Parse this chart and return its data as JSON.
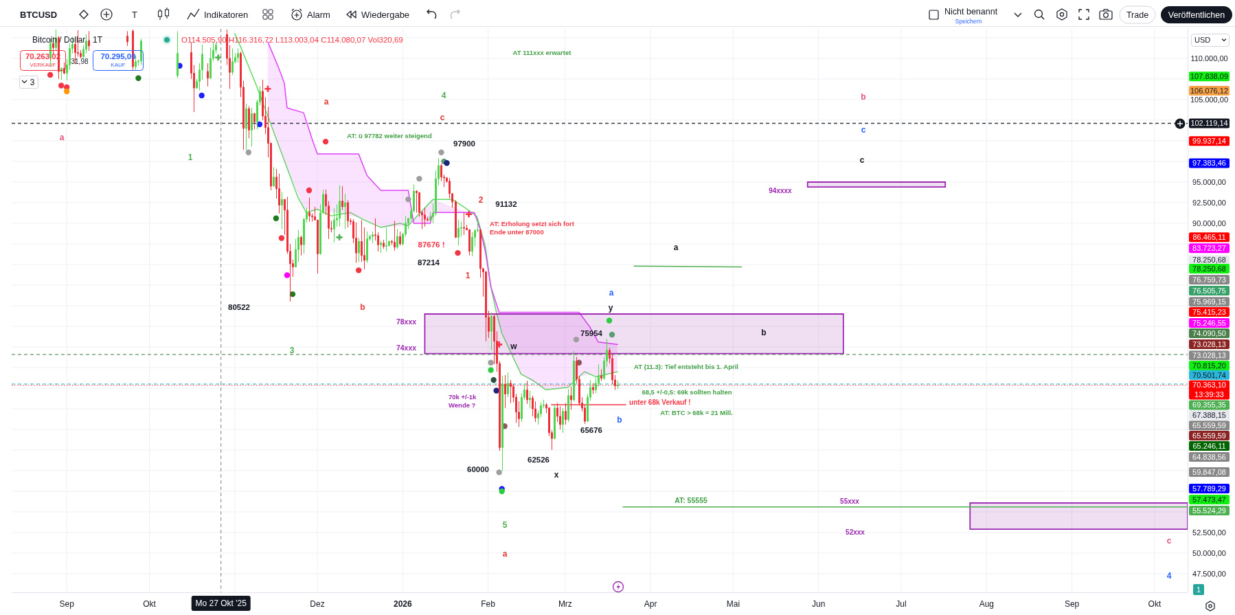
{
  "chart_data": {
    "type": "candlestick",
    "title": "Bitcoin / Dollar · 1T",
    "xlim": [
      "2025-08-12",
      "2026-10-13"
    ],
    "xticks": [
      {
        "value": "2025-09-01",
        "label": "Sep"
      },
      {
        "value": "2025-10-01",
        "label": "Okt"
      },
      {
        "value": "2025-11-01",
        "label": null
      },
      {
        "value": "2025-12-01",
        "label": "Dez"
      },
      {
        "value": "2026-01-01",
        "label": "2026"
      },
      {
        "value": "2026-02-01",
        "label": "Feb"
      },
      {
        "value": "2026-03-01",
        "label": "Mrz"
      },
      {
        "value": "2026-04-01",
        "label": "Apr"
      },
      {
        "value": "2026-05-01",
        "label": "Mai"
      },
      {
        "value": "2026-06-01",
        "label": "Jun"
      },
      {
        "value": "2026-07-01",
        "label": "Jul"
      },
      {
        "value": "2026-08-01",
        "label": "Aug"
      },
      {
        "value": "2026-09-01",
        "label": "Sep"
      },
      {
        "value": "2026-10-01",
        "label": "Okt"
      }
    ],
    "ylim": [
      45250,
      113575
    ],
    "yticks": [
      {
        "value": 47500,
        "label": "47.500,00"
      },
      {
        "value": 50000,
        "label": "50.000,00"
      },
      {
        "value": 52500,
        "label": "52.500,00"
      },
      {
        "value": 55000,
        "label": null
      },
      {
        "value": 57500,
        "label": null
      },
      {
        "value": 60000,
        "label": null
      },
      {
        "value": 62500,
        "label": null
      },
      {
        "value": 65000,
        "label": null
      },
      {
        "value": 67500,
        "label": null
      },
      {
        "value": 70000,
        "label": null
      },
      {
        "value": 72500,
        "label": null
      },
      {
        "value": 75000,
        "label": null
      },
      {
        "value": 77500,
        "label": null
      },
      {
        "value": 80000,
        "label": null
      },
      {
        "value": 82500,
        "label": null
      },
      {
        "value": 85000,
        "label": null
      },
      {
        "value": 87500,
        "label": null
      },
      {
        "value": 90000,
        "label": "90.000,00"
      },
      {
        "value": 92500,
        "label": "92.500,00"
      },
      {
        "value": 95000,
        "label": "95.000,00"
      },
      {
        "value": 97500,
        "label": null
      },
      {
        "value": 100000,
        "label": null
      },
      {
        "value": 102500,
        "label": null
      },
      {
        "value": 105000,
        "label": "105.000,00"
      },
      {
        "value": 107500,
        "label": null
      },
      {
        "value": 110000,
        "label": "110.000,00"
      },
      {
        "value": 112500,
        "label": null
      }
    ],
    "grid": true,
    "series": [
      {
        "x": [
          "2025-08-26",
          "2025-08-27",
          "2025-08-28",
          "2025-08-29",
          "2025-08-30",
          "2025-08-31",
          "2025-09-01",
          "2025-09-02",
          "2025-09-03",
          "2025-09-04",
          "2025-09-05",
          "2025-09-06",
          "2025-09-07",
          "2025-09-08",
          "2025-09-09",
          "2025-09-23",
          "2025-09-25",
          "2025-09-26",
          "2025-09-27",
          "2025-09-28",
          "2025-10-11",
          "2025-10-16",
          "2025-10-17",
          "2025-10-18",
          "2025-10-19",
          "2025-10-20",
          "2025-10-22",
          "2025-10-23",
          "2025-10-24",
          "2025-10-25",
          "2025-10-29",
          "2025-10-30",
          "2025-10-31",
          "2025-11-01",
          "2025-11-02",
          "2025-11-03",
          "2025-11-04",
          "2025-11-05",
          "2025-11-06",
          "2025-11-07",
          "2025-11-08",
          "2025-11-09",
          "2025-11-10",
          "2025-11-11",
          "2025-11-12",
          "2025-11-13",
          "2025-11-14",
          "2025-11-15",
          "2025-11-16",
          "2025-11-17",
          "2025-11-18",
          "2025-11-19",
          "2025-11-20",
          "2025-11-21",
          "2025-11-22",
          "2025-11-23",
          "2025-11-24",
          "2025-11-25",
          "2025-11-26",
          "2025-11-27",
          "2025-11-28",
          "2025-11-29",
          "2025-11-30",
          "2025-12-01",
          "2025-12-02",
          "2025-12-03",
          "2025-12-04",
          "2025-12-05",
          "2025-12-06",
          "2025-12-07",
          "2025-12-08",
          "2025-12-09",
          "2025-12-10",
          "2025-12-11",
          "2025-12-12",
          "2025-12-13",
          "2025-12-14",
          "2025-12-15",
          "2025-12-16",
          "2025-12-17",
          "2025-12-18",
          "2025-12-19",
          "2025-12-20",
          "2025-12-21",
          "2025-12-22",
          "2025-12-23",
          "2025-12-24",
          "2025-12-25",
          "2025-12-26",
          "2025-12-27",
          "2025-12-28",
          "2025-12-29",
          "2025-12-30",
          "2025-12-31",
          "2026-01-01",
          "2026-01-02",
          "2026-01-03",
          "2026-01-04",
          "2026-01-05",
          "2026-01-06",
          "2026-01-07",
          "2026-01-08",
          "2026-01-09",
          "2026-01-10",
          "2026-01-11",
          "2026-01-12",
          "2026-01-13",
          "2026-01-14",
          "2026-01-15",
          "2026-01-16",
          "2026-01-17",
          "2026-01-18",
          "2026-01-19",
          "2026-01-20",
          "2026-01-21",
          "2026-01-22",
          "2026-01-23",
          "2026-01-24",
          "2026-01-25",
          "2026-01-26",
          "2026-01-27",
          "2026-01-28",
          "2026-01-29",
          "2026-01-30",
          "2026-01-31",
          "2026-02-01",
          "2026-02-02",
          "2026-02-03",
          "2026-02-04",
          "2026-02-05",
          "2026-02-06",
          "2026-02-07",
          "2026-02-08",
          "2026-02-09",
          "2026-02-10",
          "2026-02-11",
          "2026-02-12",
          "2026-02-13",
          "2026-02-14",
          "2026-02-15",
          "2026-02-16",
          "2026-02-17",
          "2026-02-18",
          "2026-02-19",
          "2026-02-20",
          "2026-02-21",
          "2026-02-22",
          "2026-02-23",
          "2026-02-24",
          "2026-02-25",
          "2026-02-26",
          "2026-02-27",
          "2026-02-28",
          "2026-03-01",
          "2026-03-02",
          "2026-03-03",
          "2026-03-04",
          "2026-03-05",
          "2026-03-06",
          "2026-03-07",
          "2026-03-08",
          "2026-03-09",
          "2026-03-10",
          "2026-03-11",
          "2026-03-12",
          "2026-03-13",
          "2026-03-14",
          "2026-03-15",
          "2026-03-16",
          "2026-03-17",
          "2026-03-18",
          "2026-03-19",
          "2026-03-20"
        ],
        "ohlc": [
          [
            110100,
            112400,
            109000,
            111800
          ],
          [
            111800,
            112600,
            110400,
            111300
          ],
          [
            111300,
            113500,
            110900,
            112500
          ],
          [
            112500,
            112700,
            107500,
            108400
          ],
          [
            108400,
            108900,
            107400,
            108800
          ],
          [
            108800,
            109500,
            108100,
            108200
          ],
          [
            108200,
            109900,
            107300,
            109200
          ],
          [
            109200,
            111800,
            108600,
            111200
          ],
          [
            111200,
            112600,
            110600,
            111700
          ],
          [
            111700,
            112200,
            109300,
            110700
          ],
          [
            110700,
            113400,
            110200,
            110600
          ],
          [
            110600,
            111000,
            110000,
            110200
          ],
          [
            110200,
            111600,
            110000,
            111100
          ],
          [
            111100,
            112900,
            110600,
            112100
          ],
          [
            112100,
            113300,
            110900,
            111500
          ],
          [
            112700,
            113300,
            111500,
            112000
          ],
          [
            113300,
            113500,
            108600,
            109000
          ],
          [
            109000,
            110300,
            108600,
            109600
          ],
          [
            109600,
            109800,
            109100,
            109700
          ],
          [
            109700,
            112400,
            109200,
            112100
          ],
          [
            107900,
            113300,
            107600,
            110600
          ],
          [
            110700,
            111900,
            107500,
            108200
          ],
          [
            108200,
            109200,
            103500,
            106400
          ],
          [
            106400,
            107500,
            106300,
            107200
          ],
          [
            107200,
            109400,
            106100,
            108600
          ],
          [
            108600,
            111700,
            107400,
            110500
          ],
          [
            108400,
            109400,
            106600,
            107600
          ],
          [
            107600,
            111300,
            107500,
            110000
          ],
          [
            110000,
            112000,
            109700,
            111000
          ],
          [
            111000,
            111900,
            110600,
            111600
          ],
          [
            112900,
            113500,
            109200,
            110000
          ],
          [
            110000,
            111600,
            106300,
            108300
          ],
          [
            108300,
            111200,
            108000,
            109600
          ],
          [
            109600,
            110600,
            109400,
            110100
          ],
          [
            110100,
            111200,
            109500,
            110600
          ],
          [
            110600,
            110800,
            105300,
            106500
          ],
          [
            106500,
            107300,
            98900,
            101500
          ],
          [
            101500,
            104500,
            98900,
            103900
          ],
          [
            103900,
            104200,
            100300,
            101300
          ],
          [
            101300,
            104000,
            99300,
            103300
          ],
          [
            103300,
            103400,
            101400,
            102300
          ],
          [
            102300,
            105000,
            101400,
            104700
          ],
          [
            104700,
            106600,
            104300,
            106000
          ],
          [
            106000,
            107400,
            102500,
            103000
          ],
          [
            103000,
            105300,
            100800,
            101600
          ],
          [
            101600,
            104100,
            98000,
            99700
          ],
          [
            99700,
            99800,
            94000,
            94500
          ],
          [
            94500,
            96800,
            94500,
            95600
          ],
          [
            95600,
            96600,
            93000,
            94200
          ],
          [
            94200,
            96000,
            91200,
            92200
          ],
          [
            92200,
            93800,
            89300,
            92900
          ],
          [
            92900,
            92900,
            88600,
            91600
          ],
          [
            91600,
            93200,
            86300,
            86600
          ],
          [
            86600,
            87500,
            80522,
            85100
          ],
          [
            85100,
            85600,
            83500,
            84700
          ],
          [
            84700,
            88100,
            84700,
            86800
          ],
          [
            86800,
            89200,
            85300,
            88300
          ],
          [
            88300,
            88500,
            86100,
            87400
          ],
          [
            87400,
            90600,
            86300,
            90500
          ],
          [
            90500,
            91900,
            90100,
            91300
          ],
          [
            91300,
            93100,
            90200,
            90900
          ],
          [
            90900,
            91200,
            90200,
            90800
          ],
          [
            90800,
            92000,
            90400,
            90400
          ],
          [
            90400,
            90400,
            83900,
            86300
          ],
          [
            86300,
            92300,
            86200,
            91300
          ],
          [
            91300,
            94100,
            91100,
            93500
          ],
          [
            93500,
            94100,
            91000,
            92100
          ],
          [
            92100,
            92700,
            88100,
            89400
          ],
          [
            89400,
            90300,
            88900,
            89300
          ],
          [
            89300,
            91800,
            87700,
            90400
          ],
          [
            90400,
            92300,
            89600,
            90600
          ],
          [
            90600,
            94600,
            89600,
            92700
          ],
          [
            92700,
            94500,
            91600,
            92000
          ],
          [
            92000,
            93600,
            89300,
            92500
          ],
          [
            92500,
            92800,
            89500,
            90300
          ],
          [
            90300,
            90600,
            89800,
            90200
          ],
          [
            90200,
            90500,
            87600,
            88200
          ],
          [
            88200,
            90100,
            85200,
            86400
          ],
          [
            86400,
            88200,
            85300,
            87800
          ],
          [
            87800,
            90400,
            85300,
            86100
          ],
          [
            86100,
            89500,
            84400,
            85500
          ],
          [
            85500,
            89000,
            85200,
            88100
          ],
          [
            88100,
            88600,
            87900,
            88400
          ],
          [
            88400,
            89000,
            87600,
            88600
          ],
          [
            88600,
            90600,
            87900,
            88500
          ],
          [
            88500,
            88900,
            86600,
            87400
          ],
          [
            87400,
            87900,
            86400,
            87600
          ],
          [
            87600,
            88000,
            86900,
            87200
          ],
          [
            87200,
            89500,
            86600,
            87300
          ],
          [
            87300,
            87900,
            87200,
            87800
          ],
          [
            87800,
            88000,
            87400,
            87700
          ],
          [
            87700,
            90300,
            86700,
            87100
          ],
          [
            87100,
            89300,
            86900,
            88400
          ],
          [
            88400,
            89000,
            87300,
            87500
          ],
          [
            87500,
            88800,
            87300,
            88700
          ],
          [
            88700,
            90900,
            88400,
            90000
          ],
          [
            90000,
            90600,
            89300,
            90600
          ],
          [
            90600,
            91700,
            90300,
            91500
          ],
          [
            91500,
            94700,
            91300,
            93900
          ],
          [
            93900,
            94000,
            91300,
            93700
          ],
          [
            93700,
            93800,
            90800,
            91300
          ],
          [
            91300,
            91500,
            89300,
            91000
          ],
          [
            91000,
            91900,
            89600,
            90500
          ],
          [
            90500,
            90800,
            90200,
            90400
          ],
          [
            90400,
            91400,
            90200,
            90800
          ],
          [
            90800,
            92400,
            90000,
            91200
          ],
          [
            91200,
            96400,
            90900,
            95400
          ],
          [
            95400,
            97900,
            94600,
            97000
          ],
          [
            97000,
            97200,
            95100,
            95600
          ],
          [
            95600,
            95900,
            94400,
            95500
          ],
          [
            95500,
            95600,
            94900,
            95100
          ],
          [
            95100,
            95500,
            93000,
            93600
          ],
          [
            93600,
            93600,
            91900,
            92600
          ],
          [
            92600,
            92800,
            88200,
            88300
          ],
          [
            88300,
            90400,
            87300,
            89400
          ],
          [
            89400,
            90200,
            88400,
            89500
          ],
          [
            89500,
            91300,
            88600,
            89400
          ],
          [
            89400,
            89800,
            89200,
            89200
          ],
          [
            89200,
            89300,
            86100,
            86600
          ],
          [
            86600,
            88900,
            86000,
            88300
          ],
          [
            88300,
            89300,
            87200,
            89100
          ],
          [
            89100,
            90500,
            88900,
            89200
          ],
          [
            89200,
            89300,
            83400,
            84500
          ],
          [
            84500,
            84600,
            81100,
            84100
          ],
          [
            84100,
            84200,
            75700,
            78600
          ],
          [
            78600,
            79400,
            76100,
            76900
          ],
          [
            76900,
            79200,
            74600,
            78700
          ],
          [
            78700,
            79000,
            72900,
            75700
          ],
          [
            75700,
            76900,
            72000,
            73000
          ],
          [
            73000,
            73300,
            62400,
            62800
          ],
          [
            62800,
            71500,
            60000,
            70500
          ],
          [
            70500,
            71600,
            67600,
            69300
          ],
          [
            69300,
            71900,
            68900,
            70600
          ],
          [
            70600,
            71000,
            68200,
            70200
          ],
          [
            70200,
            70500,
            68300,
            68900
          ],
          [
            68900,
            69300,
            65800,
            67100
          ],
          [
            67100,
            68400,
            65300,
            66300
          ],
          [
            66300,
            69400,
            65900,
            68900
          ],
          [
            68900,
            70600,
            68600,
            69800
          ],
          [
            69800,
            70900,
            68100,
            68600
          ],
          [
            68600,
            69700,
            67600,
            68800
          ],
          [
            68800,
            69100,
            66600,
            67500
          ],
          [
            67500,
            68400,
            65900,
            66400
          ],
          [
            66400,
            67300,
            65600,
            66900
          ],
          [
            66900,
            68300,
            66500,
            67900
          ],
          [
            67900,
            68600,
            67600,
            68000
          ],
          [
            68000,
            68200,
            67000,
            67600
          ],
          [
            67600,
            67700,
            64200,
            64600
          ],
          [
            64600,
            64900,
            62526,
            63900
          ],
          [
            63900,
            68000,
            63800,
            67600
          ],
          [
            67600,
            68200,
            65900,
            66600
          ],
          [
            66600,
            67800,
            65000,
            65600
          ],
          [
            65600,
            67600,
            64600,
            67200
          ],
          [
            67200,
            68200,
            65600,
            66200
          ],
          [
            66200,
            69900,
            65900,
            69100
          ],
          [
            69100,
            70200,
            67400,
            68600
          ],
          [
            68600,
            74500,
            68400,
            73300
          ],
          [
            73300,
            73800,
            70600,
            71100
          ],
          [
            71100,
            71500,
            67900,
            68200
          ],
          [
            68200,
            68900,
            67200,
            67600
          ],
          [
            67600,
            68000,
            65676,
            66000
          ],
          [
            66000,
            69300,
            65900,
            68900
          ],
          [
            68900,
            71000,
            68500,
            70100
          ],
          [
            70100,
            70600,
            69300,
            69800
          ],
          [
            69800,
            71300,
            69400,
            70600
          ],
          [
            70600,
            72900,
            70200,
            71500
          ],
          [
            71500,
            72300,
            70900,
            71200
          ],
          [
            71200,
            73800,
            71000,
            73300
          ],
          [
            73300,
            75954,
            72600,
            74600
          ],
          [
            74600,
            74900,
            73000,
            73600
          ],
          [
            73600,
            74200,
            70500,
            71000
          ],
          [
            71000,
            71600,
            69800,
            70300
          ],
          [
            70300,
            70900,
            69900,
            70363.1
          ]
        ],
        "colors": [
          "#4fd64f",
          "#ec2f38",
          "#4fd64f",
          "#ec2f38",
          "#4fd64f",
          "#ec2f38",
          "#4fd64f",
          "#4fd64f",
          "#4fd64f",
          "#ec2f38",
          "#ec2f38",
          "#ec2f38",
          "#4fd64f",
          "#4fd64f",
          "#ec2f38",
          "#ec2f38",
          "#ec2f38",
          "#4fd64f",
          "#4fd64f",
          "#4fd64f",
          "#4fd64f",
          "#ec2f38",
          "#ec2f38",
          "#4fd64f",
          "#4fd64f",
          "#4fd64f",
          "#ec2f38",
          "#4fd64f",
          "#4fd64f",
          "#4fd64f",
          "#ec2f38",
          "#ec2f38",
          "#4fd64f",
          "#4fd64f",
          "#4fd64f",
          "#ec2f38",
          "#ec2f38",
          "#4fd64f",
          "#ec2f38",
          "#4fd64f",
          "#ec2f38",
          "#4fd64f",
          "#4fd64f",
          "#ec2f38",
          "#ec2f38",
          "#ec2f38",
          "#ec2f38",
          "#4fd64f",
          "#ec2f38",
          "#ec2f38",
          "#4fd64f",
          "#ec2f38",
          "#ec2f38",
          "#ec2f38",
          "#ec2f38",
          "#4fd64f",
          "#4fd64f",
          "#ec2f38",
          "#4fd64f",
          "#4fd64f",
          "#ec2f38",
          "#ec2f38",
          "#ec2f38",
          "#ec2f38",
          "#4fd64f",
          "#4fd64f",
          "#ec2f38",
          "#ec2f38",
          "#ec2f38",
          "#4fd64f",
          "#4fd64f",
          "#4fd64f",
          "#ec2f38",
          "#4fd64f",
          "#ec2f38",
          "#ec2f38",
          "#ec2f38",
          "#ec2f38",
          "#4fd64f",
          "#ec2f38",
          "#ec2f38",
          "#4fd64f",
          "#4fd64f",
          "#4fd64f",
          "#ec2f38",
          "#ec2f38",
          "#4fd64f",
          "#ec2f38",
          "#4fd64f",
          "#4fd64f",
          "#ec2f38",
          "#ec2f38",
          "#4fd64f",
          "#ec2f38",
          "#4fd64f",
          "#4fd64f",
          "#4fd64f",
          "#4fd64f",
          "#4fd64f",
          "#ec2f38",
          "#ec2f38",
          "#ec2f38",
          "#ec2f38",
          "#ec2f38",
          "#4fd64f",
          "#4fd64f",
          "#4fd64f",
          "#4fd64f",
          "#ec2f38",
          "#ec2f38",
          "#ec2f38",
          "#ec2f38",
          "#ec2f38",
          "#ec2f38",
          "#4fd64f",
          "#4fd64f",
          "#ec2f38",
          "#ec2f38",
          "#ec2f38",
          "#4fd64f",
          "#4fd64f",
          "#4fd64f",
          "#ec2f38",
          "#ec2f38",
          "#ec2f38",
          "#ec2f38",
          "#4fd64f",
          "#ec2f38",
          "#ec2f38",
          "#ec2f38",
          "#4fd64f",
          "#ec2f38",
          "#4fd64f",
          "#ec2f38",
          "#ec2f38",
          "#ec2f38",
          "#ec2f38",
          "#4fd64f",
          "#4fd64f",
          "#ec2f38",
          "#4fd64f",
          "#ec2f38",
          "#ec2f38",
          "#4fd64f",
          "#4fd64f",
          "#4fd64f",
          "#ec2f38",
          "#ec2f38",
          "#ec2f38",
          "#4fd64f",
          "#ec2f38",
          "#ec2f38",
          "#4fd64f",
          "#ec2f38",
          "#4fd64f",
          "#ec2f38",
          "#4fd64f",
          "#ec2f38",
          "#ec2f38",
          "#ec2f38",
          "#ec2f38",
          "#4fd64f",
          "#4fd64f",
          "#ec2f38",
          "#4fd64f",
          "#4fd64f",
          "#ec2f38",
          "#4fd64f",
          "#4fd64f",
          "#ec2f38",
          "#ec2f38",
          "#ec2f38",
          "#4fd64f"
        ]
      },
      {
        "type": "line",
        "color": "#5fdc5f",
        "x": [
          "2025-11-01",
          "2025-11-03",
          "2025-11-09",
          "2025-11-13",
          "2025-11-19",
          "2025-11-24",
          "2025-11-27",
          "2025-12-01",
          "2025-12-06",
          "2025-12-13",
          "2025-12-18",
          "2025-12-24",
          "2025-12-31",
          "2026-01-03",
          "2026-01-06",
          "2026-01-12",
          "2026-01-19",
          "2026-01-24",
          "2026-01-28",
          "2026-01-31",
          "2026-02-02",
          "2026-02-04",
          "2026-02-06",
          "2026-02-09",
          "2026-02-13",
          "2026-02-17",
          "2026-02-22",
          "2026-03-02",
          "2026-03-08",
          "2026-03-12",
          "2026-03-20"
        ],
        "values": [
          113000,
          111500,
          106600,
          103000,
          97600,
          93100,
          91300,
          91700,
          90900,
          91300,
          90400,
          89500,
          90000,
          89700,
          90800,
          92900,
          92900,
          91800,
          90800,
          87200,
          82300,
          79200,
          76700,
          74500,
          71700,
          71000,
          69800,
          70100,
          72000,
          71400,
          72000
        ]
      },
      {
        "type": "line",
        "color": "#e040fb",
        "x": [
          "2025-11-13",
          "2025-11-17",
          "2025-11-19",
          "2025-11-20",
          "2025-11-26",
          "2025-11-29",
          "2025-12-01",
          "2025-12-16",
          "2025-12-19",
          "2025-12-24",
          "2026-01-03",
          "2026-01-05",
          "2026-01-11",
          "2026-01-12",
          "2026-01-27",
          "2026-01-29",
          "2026-01-31",
          "2026-02-02",
          "2026-02-05",
          "2026-02-09",
          "2026-02-13",
          "2026-02-22",
          "2026-03-02",
          "2026-03-06",
          "2026-03-10",
          "2026-03-13",
          "2026-03-20"
        ],
        "values": [
          112000,
          108800,
          107000,
          104000,
          103400,
          100300,
          98400,
          98400,
          95800,
          94000,
          94000,
          90000,
          90000,
          91300,
          91300,
          89400,
          86600,
          82300,
          79200,
          79200,
          79200,
          79200,
          79200,
          79200,
          77400,
          75600,
          75300
        ],
        "lower": [
          103000,
          99400,
          97600,
          96700,
          91900,
          91500,
          91700,
          90700,
          90300,
          89500,
          89700,
          90400,
          92500,
          92900,
          91000,
          89600,
          87200,
          82300,
          78000,
          74500,
          71700,
          69800,
          70100,
          71400,
          71700,
          71400,
          72000
        ],
        "upper": [
          112000,
          108800,
          107000,
          104000,
          103400,
          100300,
          98400,
          98400,
          95800,
          94000,
          94000,
          90000,
          90000,
          91300,
          91300,
          89400,
          86600,
          82300,
          79200,
          79200,
          79200,
          79200,
          79200,
          79200,
          77400,
          75600,
          75300
        ]
      },
      {
        "type": "line",
        "color": "#9c27b0",
        "x": [
          "2026-01-09",
          "2026-06-10"
        ],
        "values": [
          79000,
          79000
        ],
        "lower": [
          74200,
          74200
        ],
        "upper": [
          79000,
          79000
        ]
      },
      {
        "type": "line",
        "color": "#9c27b0",
        "x": [
          "2026-05-28",
          "2026-07-17"
        ],
        "values": [
          95000,
          95000
        ],
        "lower": [
          94400,
          94400
        ],
        "upper": [
          95000,
          95000
        ]
      },
      {
        "type": "line",
        "color": "#9c27b0",
        "x": [
          "2026-07-26",
          "2026-10-13"
        ],
        "values": [
          56100,
          56100
        ],
        "lower": [
          52900,
          52900
        ],
        "upper": [
          56100,
          56100
        ]
      },
      {
        "type": "line",
        "color": "#4caf50",
        "x": [
          "2026-03-26",
          "2026-05-04"
        ],
        "values": [
          84800,
          84700
        ]
      },
      {
        "type": "line",
        "color": "#4caf50",
        "x": [
          "2026-03-22",
          "2026-10-13"
        ],
        "values": [
          55600,
          55600
        ]
      },
      {
        "type": "line",
        "color": "#f23645",
        "x": [
          "2026-02-24",
          "2026-03-23"
        ],
        "values": [
          68000,
          68000
        ]
      },
      {
        "type": "scatter",
        "marker": "circle",
        "x": [
          "2025-08-26",
          "2025-08-30",
          "2025-09-01",
          "2025-09-01",
          "2025-09-27",
          "2025-10-12",
          "2025-10-20",
          "2025-11-06",
          "2025-11-10",
          "2025-11-16",
          "2025-11-18",
          "2025-11-20",
          "2025-11-22",
          "2025-11-28",
          "2025-12-04",
          "2025-12-16",
          "2026-01-03",
          "2026-01-07",
          "2026-01-15",
          "2026-01-16",
          "2026-01-17",
          "2026-01-21",
          "2026-02-02",
          "2026-02-02",
          "2026-02-03",
          "2026-02-04",
          "2026-02-07",
          "2026-02-05",
          "2026-02-06",
          "2026-02-06",
          "2026-03-05",
          "2026-03-06",
          "2026-03-17",
          "2026-03-18"
        ],
        "values": [
          108000,
          106700,
          106500,
          106000,
          107600,
          109100,
          105500,
          98600,
          102000,
          90600,
          88200,
          83700,
          81400,
          94000,
          99900,
          84300,
          92900,
          95400,
          98600,
          97500,
          97300,
          86400,
          73100,
          72200,
          71000,
          69700,
          65400,
          59800,
          57800,
          57500,
          75900,
          73100,
          78200,
          76500
        ],
        "colors": [
          "#f23645",
          "#f23645",
          "#f23645",
          "#ff9800",
          "#1e7b1e",
          "#1f1fff",
          "#1f1fff",
          "#9e9e9e",
          "#1f1fff",
          "#1e7b1e",
          "#f23645",
          "#ff00ff",
          "#1e7b1e",
          "#f23645",
          "#f23645",
          "#f23645",
          "#9e9e9e",
          "#9e9e9e",
          "#9e9e9e",
          "#5a9e6f",
          "#1a237e",
          "#f23645",
          "#9e9e9e",
          "#2ecc40",
          "#2f4f3f",
          "#1a237e",
          "#8d5a5a",
          "#9e9e9e",
          "#1f1fff",
          "#2ecc40",
          "#9e9e9e",
          "#8d5a5a",
          "#2ecc40",
          "#5a9e6f"
        ]
      },
      {
        "type": "scatter",
        "marker": "cross",
        "x": [
          "2025-10-26",
          "2025-11-13",
          "2025-12-09",
          "2026-01-25",
          "2026-02-05"
        ],
        "values": [
          110100,
          106300,
          88300,
          91100,
          75300
        ],
        "colors": [
          "#4caf50",
          "#f23645",
          "#4caf50",
          "#f23645",
          "#f23645"
        ]
      }
    ],
    "ref_lines": [
      {
        "axis": "x",
        "value": "2025-10-27",
        "label": "Mo 27 Okt '25",
        "color": "#131722",
        "line_style": "dashed"
      },
      {
        "axis": "y",
        "value": 102119.14,
        "label": "102.119,14",
        "color": "#131722",
        "line_style": "dashed"
      },
      {
        "axis": "y",
        "value": 74090.5,
        "label": "74.090,50",
        "color": "#4a7f4a",
        "line_style": "dashed"
      },
      {
        "axis": "y",
        "value": 70501.74,
        "label": "70.501,74",
        "color": "#29b6d8",
        "line_style": "dashed"
      },
      {
        "axis": "y",
        "value": 70363.1,
        "label": "70.363,10\n13:39:33",
        "color": "#ff0000",
        "line_style": "dotted"
      }
    ],
    "annotations": [
      "O114.505,90 H116.316,72 L113.003,04 C114.080,07 Vol320,69",
      "70.263,02",
      "VERKAUF",
      "31,98",
      "70.295,00",
      "KAUF",
      "3",
      "BTCUSD",
      "T",
      "Indikatoren",
      "Alarm",
      "Wiedergabe",
      "Nicht benannt",
      "Speichern",
      "Trade",
      "Veröffentlichen",
      "USD",
      "1",
      "107.838,09",
      "106.076,12",
      "99.937,14",
      "97.383,46",
      "86.465,11",
      "83.723,27",
      "78.250,68",
      "78.250,68",
      "76.759,73",
      "76.505,75",
      "75.969,15",
      "75.415,23",
      "75.246,55",
      "73.028,13",
      "73.028,13",
      "70.815,20",
      "69.355,35",
      "67.388,15",
      "65.559,59",
      "65.559,59",
      "65.246,11",
      "64.838,56",
      "59.847,08",
      "57.789,29",
      "57.473,47",
      "55.524,29",
      "a",
      "1",
      "a",
      "4",
      "c",
      "AT 111xxx erwartet",
      "AT: ü 97782 weiter steigend",
      "97900",
      "2",
      "91132",
      "AT: Erholung setzt sich fort\nEnde unter 87000",
      "87676 !",
      "87214",
      "1",
      "80522",
      "b",
      "3",
      "78xxx",
      "74xxx",
      "w",
      "75954",
      "y",
      "a",
      "b",
      "AT (11.3): Tief entsteht bis 1. April",
      "70k +/-1k\nWende ?",
      "68,5 +/-0,5: 69k sollten halten",
      "AT: BTC > 68k = 21 Mill.",
      "b",
      "65676",
      "62526",
      "x",
      "60000",
      "5",
      "a",
      "AT: 55555",
      "55xxx",
      "52xxx",
      "94xxxx",
      "a",
      "b",
      "c",
      "c",
      "c",
      "4",
      {
        "text": "unter 68k Verkauf !",
        "x": "2026-03-23",
        "y": 68000
      }
    ]
  }
}
